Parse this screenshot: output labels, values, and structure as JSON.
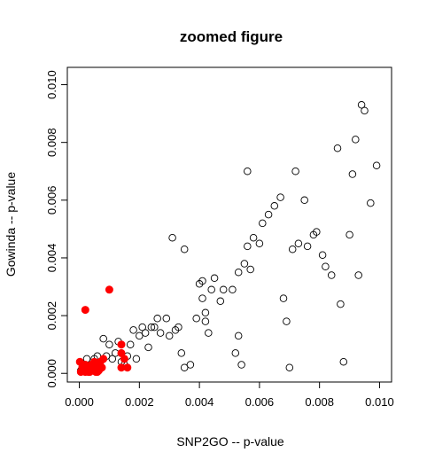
{
  "chart_data": {
    "type": "scatter",
    "title": "zoomed figure",
    "xlabel": "SNP2GO -- p-value",
    "ylabel": "Gowinda -- p-value",
    "xlim": [
      -0.0004,
      0.0104
    ],
    "ylim": [
      -0.0003,
      0.0106
    ],
    "xticks": [
      0.0,
      0.002,
      0.004,
      0.006,
      0.008,
      0.01
    ],
    "xtick_labels": [
      "0.000",
      "0.002",
      "0.004",
      "0.006",
      "0.008",
      "0.010"
    ],
    "yticks": [
      0.0,
      0.002,
      0.004,
      0.006,
      0.008,
      0.01
    ],
    "ytick_labels": [
      "0.000",
      "0.002",
      "0.004",
      "0.006",
      "0.008",
      "0.010"
    ],
    "grid": false,
    "legend": "none",
    "colors": {
      "open": "#000000",
      "highlight": "#ff0000"
    },
    "series": [
      {
        "marker": "open-circle",
        "points": [
          [
            5e-05,
            0.0001
          ],
          [
            0.00015,
            0.0002
          ],
          [
            0.0002,
            0.0003
          ],
          [
            0.00025,
            0.0005
          ],
          [
            0.0003,
            0.0001
          ],
          [
            0.0004,
            0.0003
          ],
          [
            0.0005,
            0.0005
          ],
          [
            0.0006,
            0.0006
          ],
          [
            0.0007,
            0.0004
          ],
          [
            0.0008,
            0.0012
          ],
          [
            0.0009,
            0.0006
          ],
          [
            0.001,
            0.001
          ],
          [
            0.0011,
            0.0005
          ],
          [
            0.0012,
            0.0007
          ],
          [
            0.0013,
            0.0011
          ],
          [
            0.0014,
            0.0004
          ],
          [
            0.0015,
            0.0003
          ],
          [
            0.0016,
            0.0006
          ],
          [
            0.0017,
            0.001
          ],
          [
            0.0018,
            0.0015
          ],
          [
            0.0019,
            0.0005
          ],
          [
            0.002,
            0.0013
          ],
          [
            0.0021,
            0.0016
          ],
          [
            0.0022,
            0.0014
          ],
          [
            0.0023,
            0.0009
          ],
          [
            0.0024,
            0.0016
          ],
          [
            0.0025,
            0.0016
          ],
          [
            0.0026,
            0.0019
          ],
          [
            0.0027,
            0.0014
          ],
          [
            0.0029,
            0.0019
          ],
          [
            0.003,
            0.0013
          ],
          [
            0.0032,
            0.0015
          ],
          [
            0.0033,
            0.0016
          ],
          [
            0.0034,
            0.0007
          ],
          [
            0.0035,
            0.0002
          ],
          [
            0.0037,
            0.0003
          ],
          [
            0.0039,
            0.0019
          ],
          [
            0.004,
            0.0031
          ],
          [
            0.0041,
            0.0026
          ],
          [
            0.0042,
            0.0021
          ],
          [
            0.0043,
            0.0014
          ],
          [
            0.0044,
            0.0029
          ],
          [
            0.0045,
            0.0033
          ],
          [
            0.0047,
            0.0025
          ],
          [
            0.0048,
            0.0029
          ],
          [
            0.0052,
            0.0007
          ],
          [
            0.0053,
            0.0035
          ],
          [
            0.0054,
            0.0003
          ],
          [
            0.0055,
            0.0038
          ],
          [
            0.0056,
            0.0044
          ],
          [
            0.0057,
            0.0036
          ],
          [
            0.0058,
            0.0047
          ],
          [
            0.006,
            0.0045
          ],
          [
            0.0061,
            0.0052
          ],
          [
            0.0063,
            0.0055
          ],
          [
            0.0065,
            0.0058
          ],
          [
            0.0067,
            0.0061
          ],
          [
            0.0068,
            0.0026
          ],
          [
            0.0069,
            0.0018
          ],
          [
            0.007,
            0.0002
          ],
          [
            0.0071,
            0.0043
          ],
          [
            0.0072,
            0.007
          ],
          [
            0.0073,
            0.0045
          ],
          [
            0.0075,
            0.006
          ],
          [
            0.0076,
            0.0044
          ],
          [
            0.0078,
            0.0048
          ],
          [
            0.0079,
            0.0049
          ],
          [
            0.0081,
            0.0041
          ],
          [
            0.0082,
            0.0037
          ],
          [
            0.0084,
            0.0034
          ],
          [
            0.0086,
            0.0078
          ],
          [
            0.0087,
            0.0024
          ],
          [
            0.0088,
            0.0004
          ],
          [
            0.009,
            0.0048
          ],
          [
            0.0091,
            0.0069
          ],
          [
            0.0092,
            0.0081
          ],
          [
            0.0093,
            0.0034
          ],
          [
            0.0094,
            0.0093
          ],
          [
            0.0095,
            0.0091
          ],
          [
            0.0097,
            0.0059
          ],
          [
            0.0099,
            0.0072
          ],
          [
            0.0031,
            0.0047
          ],
          [
            0.0035,
            0.0043
          ],
          [
            0.0041,
            0.0032
          ],
          [
            0.0056,
            0.007
          ],
          [
            0.0042,
            0.0018
          ],
          [
            0.0053,
            0.0013
          ],
          [
            0.0051,
            0.0029
          ]
        ]
      },
      {
        "marker": "filled-circle",
        "points": [
          [
            5e-05,
            5e-05
          ],
          [
            0.0001,
            0.0002
          ],
          [
            0.00015,
            0.0001
          ],
          [
            0.0002,
            5e-05
          ],
          [
            0.0003,
            0.0002
          ],
          [
            0.00035,
            5e-05
          ],
          [
            0.0004,
            0.0003
          ],
          [
            0.00045,
            0.0001
          ],
          [
            0.0005,
            0.0002
          ],
          [
            0.00055,
            5e-05
          ],
          [
            0.0006,
            0.0003
          ],
          [
            0.00065,
            0.0001
          ],
          [
            0.0007,
            0.0004
          ],
          [
            0.00075,
            0.0002
          ],
          [
            0.0008,
            0.0005
          ],
          [
            0.0001,
            0.0001
          ],
          [
            0.0002,
            0.0003
          ],
          [
            0.0003,
            5e-05
          ],
          [
            0.0005,
            0.0004
          ],
          [
            0.0006,
            5e-05
          ],
          [
            2e-05,
            0.0004
          ],
          [
            0.0014,
            0.0007
          ],
          [
            0.0015,
            0.0005
          ],
          [
            0.0014,
            0.0002
          ],
          [
            0.0016,
            0.0002
          ],
          [
            0.0014,
            0.001
          ],
          [
            0.0002,
            0.0022
          ],
          [
            0.001,
            0.0029
          ]
        ]
      }
    ]
  }
}
